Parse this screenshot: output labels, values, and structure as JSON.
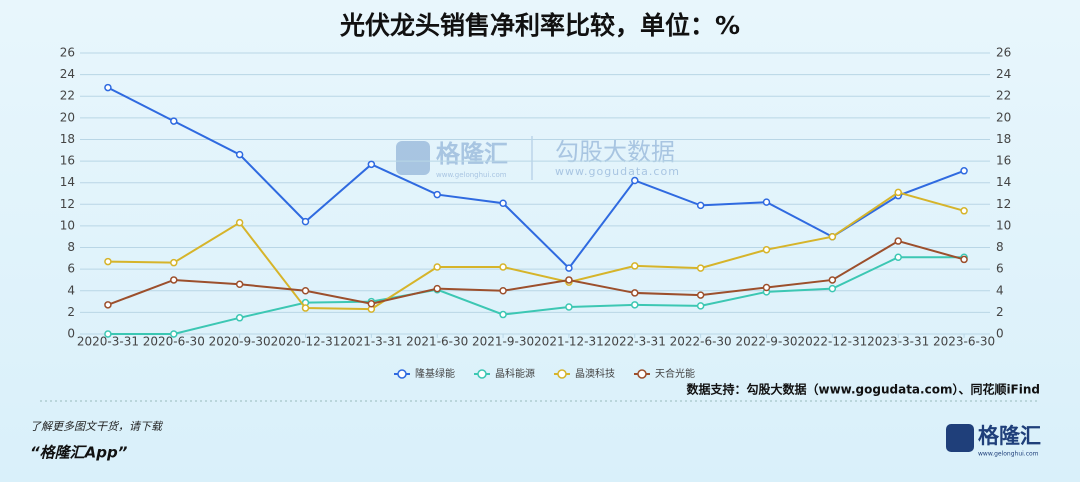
{
  "chart_data": {
    "type": "line",
    "title": "光伏龙头销售净利率比较，单位：%",
    "categories": [
      "2020-3-31",
      "2020-6-30",
      "2020-9-30",
      "2020-12-31",
      "2021-3-31",
      "2021-6-30",
      "2021-9-30",
      "2021-12-31",
      "2022-3-31",
      "2022-6-30",
      "2022-9-30",
      "2022-12-31",
      "2023-3-31",
      "2023-6-30"
    ],
    "series": [
      {
        "name": "隆基绿能",
        "color": "#2f6ae0",
        "values": [
          22.8,
          19.7,
          16.6,
          10.4,
          15.7,
          12.9,
          12.1,
          6.1,
          14.2,
          11.9,
          12.2,
          9.0,
          12.8,
          15.1
        ]
      },
      {
        "name": "晶科能源",
        "color": "#3cc7b3",
        "values": [
          0,
          0,
          1.5,
          2.9,
          3.0,
          4.1,
          1.8,
          2.5,
          2.7,
          2.6,
          3.9,
          4.2,
          7.1,
          7.1
        ]
      },
      {
        "name": "晶澳科技",
        "color": "#d6b42a",
        "values": [
          6.7,
          6.6,
          10.3,
          2.4,
          2.3,
          6.2,
          6.2,
          4.8,
          6.3,
          6.1,
          7.8,
          9.0,
          13.1,
          11.4
        ]
      },
      {
        "name": "天合光能",
        "color": "#9c4f2c",
        "values": [
          2.7,
          5.0,
          4.6,
          4.0,
          2.8,
          4.2,
          4.0,
          5.0,
          3.8,
          3.6,
          4.3,
          5.0,
          8.6,
          6.9
        ]
      }
    ],
    "ylim": [
      0,
      26
    ],
    "yticks": [
      0,
      2,
      4,
      6,
      8,
      10,
      12,
      14,
      16,
      18,
      20,
      22,
      24,
      26
    ],
    "y2lim": [
      0,
      26
    ],
    "y2ticks": [
      0,
      2,
      4,
      6,
      8,
      10,
      12,
      14,
      16,
      18,
      20,
      22,
      24,
      26
    ],
    "grid": true,
    "legend": "bottom",
    "source": "数据支持：勾股大数据（www.gogudata.com）、同花顺iFind"
  },
  "watermark": {
    "brand": "格隆汇",
    "brand_url": "www.gelonghui.com",
    "partner": "勾股大数据",
    "partner_url": "www.gogudata.com"
  },
  "footer": {
    "prompt": "了解更多图文干货，请下载",
    "app": "“格隆汇App”",
    "logo": "格隆汇",
    "logo_url": "www.gelonghui.com"
  }
}
